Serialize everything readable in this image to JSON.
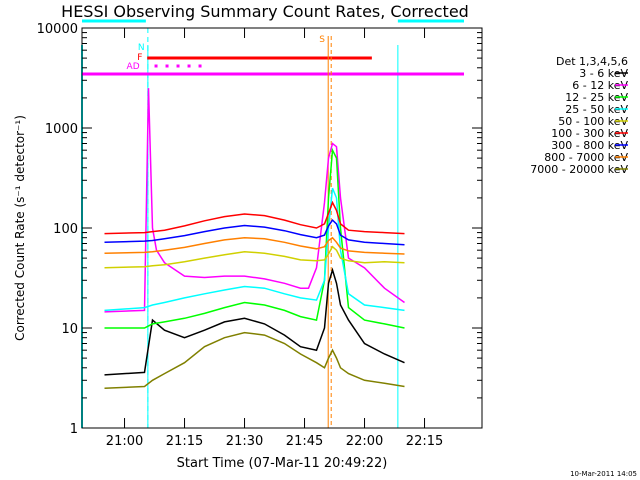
{
  "chart_data": {
    "type": "line",
    "title": "HESSI Observing Summary Count Rates, Corrected",
    "xlabel": "Start Time (07-Mar-11 20:49:22)",
    "ylabel": "Corrected Count Rate (s⁻¹ detector⁻¹)",
    "yscale": "log",
    "ylim": [
      1,
      10000
    ],
    "xlim": [
      "20:49:22",
      "22:29:22"
    ],
    "x_ticks": [
      "21:00",
      "21:15",
      "21:30",
      "21:45",
      "22:00",
      "22:15"
    ],
    "y_ticks": [
      "1",
      "10",
      "100",
      "1000",
      "10000"
    ],
    "legend_title": "Det 1,3,4,5,6",
    "legend_position": "right",
    "footer_date": "10-Mar-2011 14:05",
    "series": [
      {
        "name": "3 - 6 keV",
        "color": "#000000",
        "points": [
          [
            "20:55:00",
            3.4
          ],
          [
            "21:05:00",
            3.6
          ],
          [
            "21:07:00",
            12
          ],
          [
            "21:10:00",
            9.5
          ],
          [
            "21:15:00",
            8
          ],
          [
            "21:20:00",
            9.5
          ],
          [
            "21:25:00",
            11.5
          ],
          [
            "21:30:00",
            12.5
          ],
          [
            "21:35:00",
            11
          ],
          [
            "21:40:00",
            8.5
          ],
          [
            "21:44:00",
            6.5
          ],
          [
            "21:48:00",
            6
          ],
          [
            "21:50:00",
            10
          ],
          [
            "21:51:00",
            28
          ],
          [
            "21:52:00",
            38
          ],
          [
            "21:53:00",
            28
          ],
          [
            "21:54:00",
            17
          ],
          [
            "21:56:00",
            12
          ],
          [
            "22:00:00",
            7
          ],
          [
            "22:05:00",
            5.5
          ],
          [
            "22:10:00",
            4.5
          ]
        ]
      },
      {
        "name": "6 - 12 keV",
        "color": "#ff00ff",
        "points": [
          [
            "20:55:00",
            14.5
          ],
          [
            "21:05:00",
            15
          ],
          [
            "21:06:00",
            2500
          ],
          [
            "21:07:00",
            100
          ],
          [
            "21:08:00",
            60
          ],
          [
            "21:10:00",
            45
          ],
          [
            "21:15:00",
            33
          ],
          [
            "21:20:00",
            32
          ],
          [
            "21:25:00",
            33
          ],
          [
            "21:30:00",
            33
          ],
          [
            "21:35:00",
            31
          ],
          [
            "21:40:00",
            28
          ],
          [
            "21:44:00",
            25
          ],
          [
            "21:46:00",
            25
          ],
          [
            "21:48:00",
            40
          ],
          [
            "21:50:00",
            180
          ],
          [
            "21:51:00",
            500
          ],
          [
            "21:52:00",
            700
          ],
          [
            "21:53:00",
            650
          ],
          [
            "21:54:00",
            200
          ],
          [
            "21:56:00",
            50
          ],
          [
            "22:00:00",
            40
          ],
          [
            "22:05:00",
            25
          ],
          [
            "22:10:00",
            18
          ]
        ]
      },
      {
        "name": "12 - 25 keV",
        "color": "#00ff00",
        "points": [
          [
            "20:55:00",
            10
          ],
          [
            "21:05:00",
            10
          ],
          [
            "21:07:00",
            11
          ],
          [
            "21:10:00",
            11.5
          ],
          [
            "21:15:00",
            12.5
          ],
          [
            "21:20:00",
            14
          ],
          [
            "21:25:00",
            16
          ],
          [
            "21:30:00",
            18
          ],
          [
            "21:35:00",
            17
          ],
          [
            "21:40:00",
            15
          ],
          [
            "21:44:00",
            13
          ],
          [
            "21:48:00",
            12
          ],
          [
            "21:50:00",
            30
          ],
          [
            "21:51:00",
            200
          ],
          [
            "21:52:00",
            600
          ],
          [
            "21:53:00",
            500
          ],
          [
            "21:54:00",
            100
          ],
          [
            "21:56:00",
            16
          ],
          [
            "22:00:00",
            12
          ],
          [
            "22:05:00",
            11
          ],
          [
            "22:10:00",
            10
          ]
        ]
      },
      {
        "name": "25 - 50 keV",
        "color": "#00ffff",
        "points": [
          [
            "20:55:00",
            15
          ],
          [
            "21:05:00",
            16
          ],
          [
            "21:07:00",
            17
          ],
          [
            "21:10:00",
            18
          ],
          [
            "21:15:00",
            20
          ],
          [
            "21:20:00",
            22
          ],
          [
            "21:25:00",
            24
          ],
          [
            "21:30:00",
            26
          ],
          [
            "21:35:00",
            25
          ],
          [
            "21:40:00",
            22
          ],
          [
            "21:44:00",
            20
          ],
          [
            "21:48:00",
            19
          ],
          [
            "21:50:00",
            30
          ],
          [
            "21:51:00",
            100
          ],
          [
            "21:52:00",
            250
          ],
          [
            "21:53:00",
            200
          ],
          [
            "21:54:00",
            60
          ],
          [
            "21:56:00",
            22
          ],
          [
            "22:00:00",
            17
          ],
          [
            "22:05:00",
            16
          ],
          [
            "22:10:00",
            15
          ]
        ]
      },
      {
        "name": "50 - 100 keV",
        "color": "#d0d000",
        "points": [
          [
            "20:55:00",
            40
          ],
          [
            "21:05:00",
            41
          ],
          [
            "21:07:00",
            42
          ],
          [
            "21:10:00",
            43
          ],
          [
            "21:15:00",
            46
          ],
          [
            "21:20:00",
            50
          ],
          [
            "21:25:00",
            54
          ],
          [
            "21:30:00",
            58
          ],
          [
            "21:35:00",
            56
          ],
          [
            "21:40:00",
            52
          ],
          [
            "21:44:00",
            48
          ],
          [
            "21:48:00",
            47
          ],
          [
            "21:50:00",
            48
          ],
          [
            "21:51:00",
            55
          ],
          [
            "21:52:00",
            65
          ],
          [
            "21:53:00",
            60
          ],
          [
            "21:54:00",
            50
          ],
          [
            "21:56:00",
            47
          ],
          [
            "22:00:00",
            45
          ],
          [
            "22:05:00",
            46
          ],
          [
            "22:10:00",
            45
          ]
        ]
      },
      {
        "name": "100 - 300 keV",
        "color": "#ff0000",
        "points": [
          [
            "20:55:00",
            88
          ],
          [
            "21:05:00",
            90
          ],
          [
            "21:07:00",
            92
          ],
          [
            "21:10:00",
            95
          ],
          [
            "21:15:00",
            105
          ],
          [
            "21:20:00",
            118
          ],
          [
            "21:25:00",
            130
          ],
          [
            "21:30:00",
            138
          ],
          [
            "21:35:00",
            133
          ],
          [
            "21:40:00",
            120
          ],
          [
            "21:44:00",
            108
          ],
          [
            "21:48:00",
            100
          ],
          [
            "21:50:00",
            110
          ],
          [
            "21:51:00",
            140
          ],
          [
            "21:52:00",
            180
          ],
          [
            "21:53:00",
            150
          ],
          [
            "21:54:00",
            110
          ],
          [
            "21:56:00",
            95
          ],
          [
            "22:00:00",
            92
          ],
          [
            "22:05:00",
            90
          ],
          [
            "22:10:00",
            88
          ]
        ]
      },
      {
        "name": "300 - 800 keV",
        "color": "#0000ff",
        "points": [
          [
            "20:55:00",
            72
          ],
          [
            "21:05:00",
            74
          ],
          [
            "21:07:00",
            75
          ],
          [
            "21:10:00",
            78
          ],
          [
            "21:15:00",
            84
          ],
          [
            "21:20:00",
            92
          ],
          [
            "21:25:00",
            100
          ],
          [
            "21:30:00",
            106
          ],
          [
            "21:35:00",
            102
          ],
          [
            "21:40:00",
            94
          ],
          [
            "21:44:00",
            86
          ],
          [
            "21:48:00",
            80
          ],
          [
            "21:50:00",
            85
          ],
          [
            "21:51:00",
            105
          ],
          [
            "21:52:00",
            120
          ],
          [
            "21:53:00",
            110
          ],
          [
            "21:54:00",
            85
          ],
          [
            "21:56:00",
            76
          ],
          [
            "22:00:00",
            72
          ],
          [
            "22:05:00",
            70
          ],
          [
            "22:10:00",
            68
          ]
        ]
      },
      {
        "name": "800 - 7000 keV",
        "color": "#ff8000",
        "points": [
          [
            "20:55:00",
            56
          ],
          [
            "21:05:00",
            57
          ],
          [
            "21:07:00",
            58
          ],
          [
            "21:10:00",
            60
          ],
          [
            "21:15:00",
            64
          ],
          [
            "21:20:00",
            70
          ],
          [
            "21:25:00",
            76
          ],
          [
            "21:30:00",
            80
          ],
          [
            "21:35:00",
            78
          ],
          [
            "21:40:00",
            72
          ],
          [
            "21:44:00",
            66
          ],
          [
            "21:48:00",
            62
          ],
          [
            "21:50:00",
            65
          ],
          [
            "21:51:00",
            75
          ],
          [
            "21:52:00",
            80
          ],
          [
            "21:53:00",
            72
          ],
          [
            "21:54:00",
            63
          ],
          [
            "21:56:00",
            59
          ],
          [
            "22:00:00",
            57
          ],
          [
            "22:05:00",
            56
          ],
          [
            "22:10:00",
            55
          ]
        ]
      },
      {
        "name": "7000 - 20000 keV",
        "color": "#808000",
        "points": [
          [
            "20:55:00",
            2.5
          ],
          [
            "21:05:00",
            2.6
          ],
          [
            "21:07:00",
            3
          ],
          [
            "21:10:00",
            3.5
          ],
          [
            "21:15:00",
            4.5
          ],
          [
            "21:20:00",
            6.5
          ],
          [
            "21:25:00",
            8
          ],
          [
            "21:30:00",
            9
          ],
          [
            "21:35:00",
            8.5
          ],
          [
            "21:40:00",
            7
          ],
          [
            "21:44:00",
            5.5
          ],
          [
            "21:48:00",
            4.5
          ],
          [
            "21:50:00",
            4
          ],
          [
            "21:51:00",
            5
          ],
          [
            "21:52:00",
            6
          ],
          [
            "21:53:00",
            5
          ],
          [
            "21:54:00",
            4
          ],
          [
            "21:56:00",
            3.5
          ],
          [
            "22:00:00",
            3
          ],
          [
            "22:05:00",
            2.8
          ],
          [
            "22:10:00",
            2.6
          ]
        ]
      }
    ],
    "indicators": [
      {
        "label": "N",
        "color": "#00ffff",
        "start": "21:05:50",
        "end": "22:08:20"
      },
      {
        "label": "F",
        "color": "#ff0000",
        "start": "21:05:40",
        "end": "22:01:50"
      },
      {
        "label": "AD",
        "color": "#ff00ff",
        "start": "21:05:30",
        "end": "21:20:00"
      },
      {
        "label": "S",
        "color": "#ff8000",
        "start": "21:51:40",
        "end": "21:51:40"
      }
    ],
    "night_periods": [
      {
        "start": "20:49:22",
        "end": "21:05:50"
      },
      {
        "start": "22:08:20",
        "end": "22:29:22"
      }
    ]
  }
}
